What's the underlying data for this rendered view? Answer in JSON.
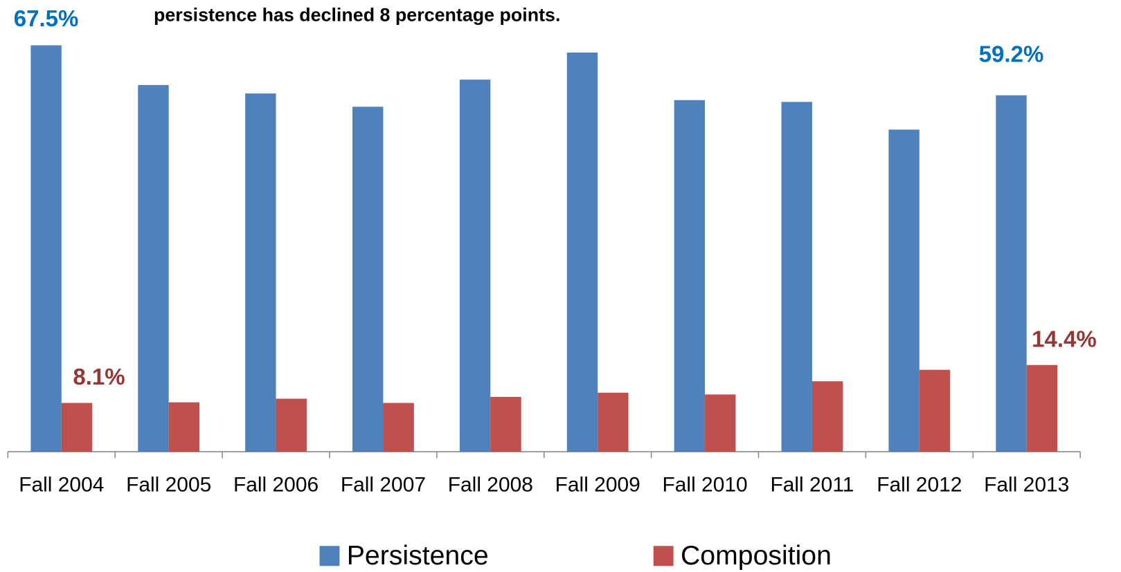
{
  "chart_data": {
    "type": "bar",
    "title": "persistence has declined 8 percentage points.",
    "categories": [
      "Fall 2004",
      "Fall 2005",
      "Fall 2006",
      "Fall 2007",
      "Fall 2008",
      "Fall 2009",
      "Fall 2010",
      "Fall 2011",
      "Fall 2012",
      "Fall 2013"
    ],
    "series": [
      {
        "name": "Persistence",
        "color": "#4f81bd",
        "label_color": "#0070c0",
        "values": [
          67.5,
          60.9,
          59.5,
          57.3,
          61.8,
          66.3,
          58.4,
          58.1,
          53.5,
          59.2
        ],
        "value_labels": [
          "67.5%",
          null,
          null,
          null,
          null,
          null,
          null,
          null,
          null,
          "59.2%"
        ]
      },
      {
        "name": "Composition",
        "color": "#c0504d",
        "label_color": "#953735",
        "values": [
          8.1,
          8.2,
          8.8,
          8.1,
          9.1,
          9.8,
          9.5,
          11.7,
          13.6,
          14.4
        ],
        "value_labels": [
          "8.1%",
          null,
          null,
          null,
          null,
          null,
          null,
          null,
          null,
          "14.4%"
        ]
      }
    ],
    "ylim": [
      0,
      70
    ],
    "legend": "bottom"
  }
}
